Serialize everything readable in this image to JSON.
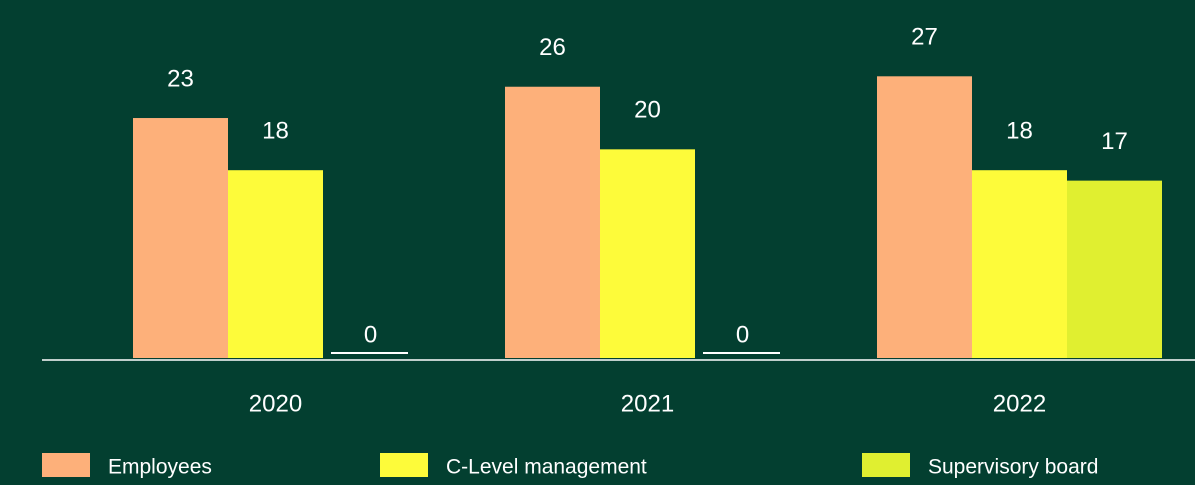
{
  "chart_data": {
    "type": "bar",
    "categories": [
      "2020",
      "2021",
      "2022"
    ],
    "series": [
      {
        "name": "Employees",
        "color": "#fdb07a",
        "values": [
          23,
          26,
          27
        ]
      },
      {
        "name": "C-Level management",
        "color": "#fdfb3a",
        "values": [
          18,
          20,
          18
        ]
      },
      {
        "name": "Supervisory board",
        "color": "#e0ef30",
        "values": [
          0,
          0,
          17
        ]
      }
    ],
    "ylim": [
      0,
      30
    ]
  }
}
